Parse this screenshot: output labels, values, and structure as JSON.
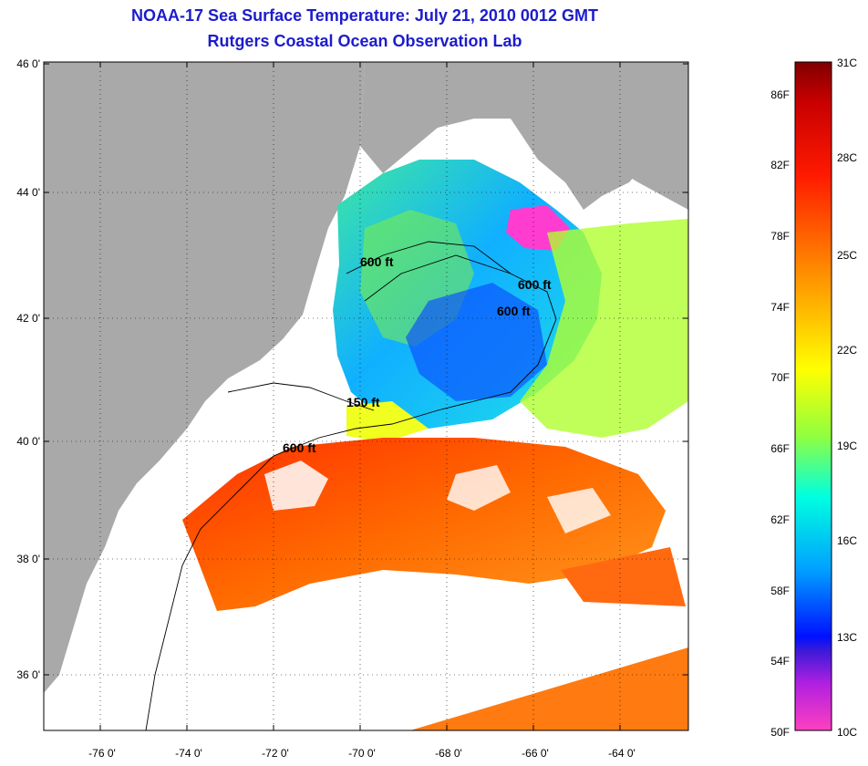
{
  "title": {
    "line1": "NOAA-17 Sea Surface Temperature:  July 21, 2010 0012 GMT",
    "line2": "Rutgers Coastal Ocean Observation Lab"
  },
  "map": {
    "lon_ticks": [
      "-76 0'",
      "-74 0'",
      "-72 0'",
      "-70 0'",
      "-68 0'",
      "-66 0'",
      "-64 0'"
    ],
    "lat_ticks": [
      "46 0'",
      "44 0'",
      "42 0'",
      "40 0'",
      "38 0'",
      "36 0'"
    ],
    "contour_labels": [
      "600 ft",
      "600 ft",
      "600 ft",
      "150 ft",
      "600 ft"
    ],
    "land_color": "#a9a9a9",
    "cloud_color": "#ffffff"
  },
  "colorbar": {
    "fahrenheit": [
      "86F",
      "82F",
      "78F",
      "74F",
      "70F",
      "66F",
      "62F",
      "58F",
      "54F",
      "50F"
    ],
    "celsius": [
      "31C",
      "28C",
      "25C",
      "22C",
      "19C",
      "16C",
      "13C",
      "10C"
    ]
  }
}
